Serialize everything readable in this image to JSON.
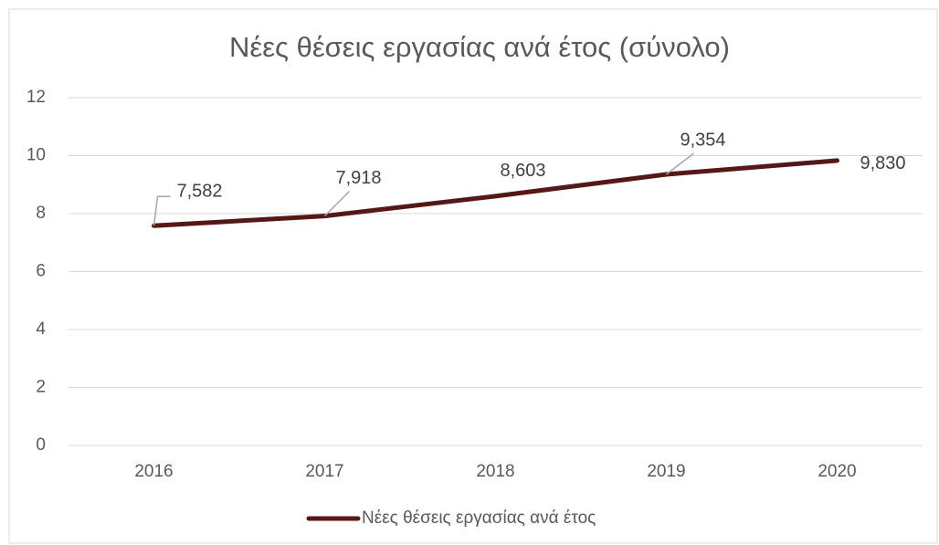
{
  "chart_data": {
    "type": "line",
    "title": "Νέες θέσεις εργασίας ανά έτος (σύνολο)",
    "categories": [
      "2016",
      "2017",
      "2018",
      "2019",
      "2020"
    ],
    "series": [
      {
        "name": "Νέες θέσεις εργασίας ανά έτος",
        "color": "#561717",
        "values": [
          7.582,
          7.918,
          8.603,
          9.354,
          9.83
        ],
        "value_labels": [
          "7,582",
          "7,918",
          "8,603",
          "9,354",
          "9,830"
        ]
      }
    ],
    "ylim": [
      0,
      12
    ],
    "yticks": [
      0,
      2,
      4,
      6,
      8,
      10,
      12
    ],
    "grid": true,
    "legend": "bottom"
  }
}
